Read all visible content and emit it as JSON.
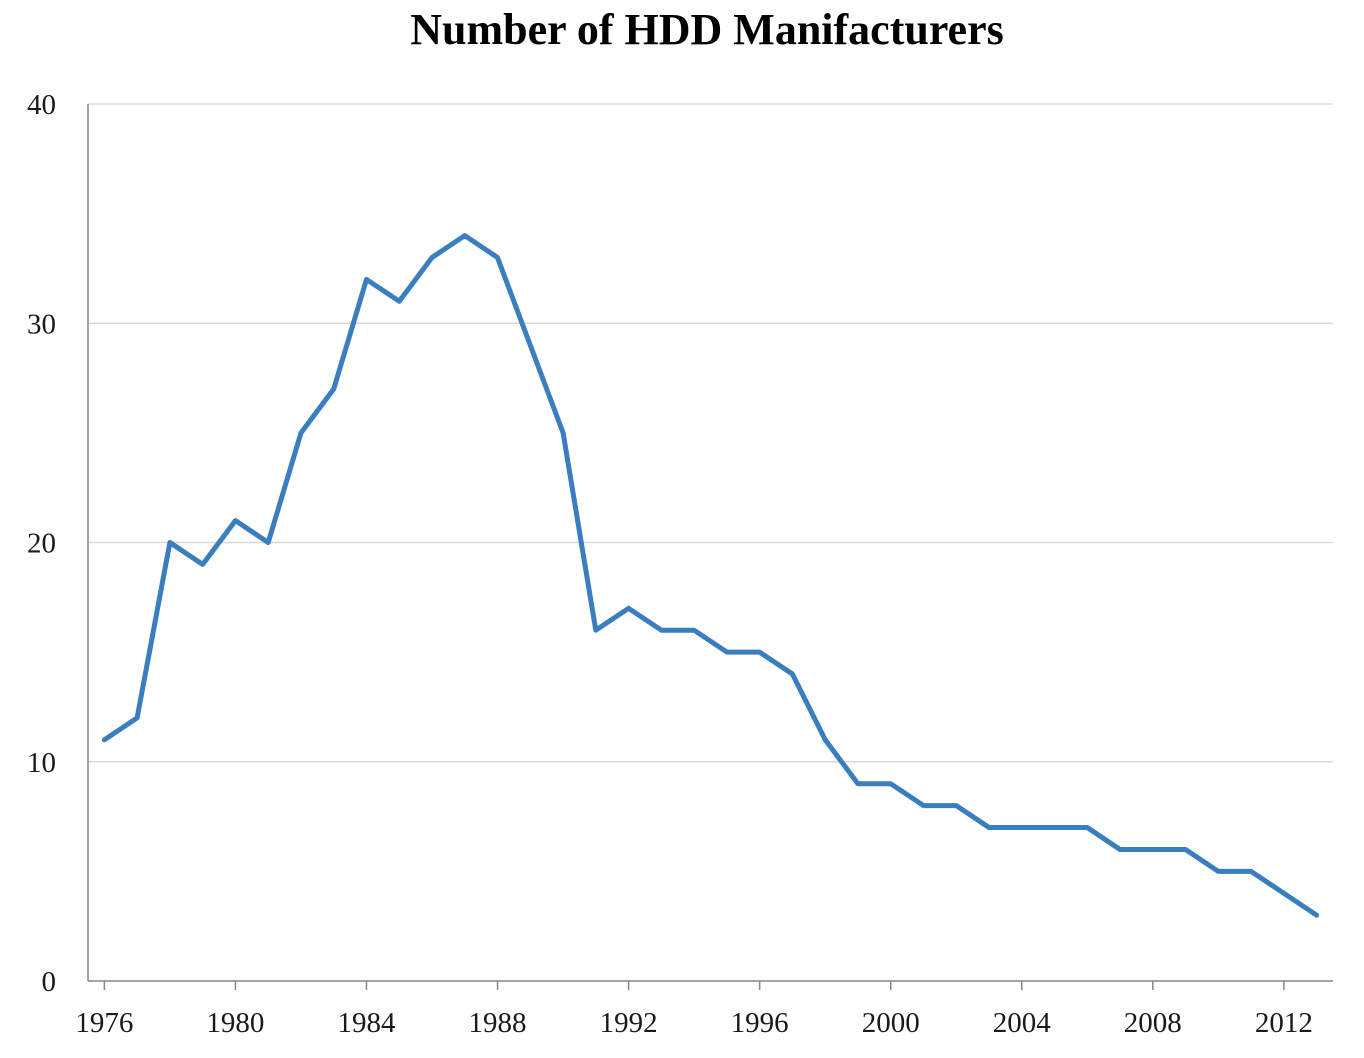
{
  "chart_data": {
    "type": "line",
    "title": "Number of HDD Manifacturers",
    "xlabel": "",
    "ylabel": "",
    "xlim": [
      1975.5,
      2013.5
    ],
    "ylim": [
      0,
      40
    ],
    "x_ticks": [
      1976,
      1980,
      1984,
      1988,
      1992,
      1996,
      2000,
      2004,
      2008,
      2012
    ],
    "x_tick_labels": [
      "1976",
      "1980",
      "1984",
      "1988",
      "1992",
      "1996",
      "2000",
      "2004",
      "2008",
      "2012"
    ],
    "y_ticks": [
      0,
      10,
      20,
      30,
      40
    ],
    "y_tick_labels": [
      "0",
      "10",
      "20",
      "30",
      "40"
    ],
    "grid": "horizontal",
    "legend": "none",
    "series": [
      {
        "color": "#3a7ebf",
        "x": [
          1976,
          1977,
          1978,
          1979,
          1980,
          1981,
          1982,
          1983,
          1984,
          1985,
          1986,
          1987,
          1988,
          1989,
          1990,
          1991,
          1992,
          1993,
          1994,
          1995,
          1996,
          1997,
          1998,
          1999,
          2000,
          2001,
          2002,
          2003,
          2004,
          2005,
          2006,
          2007,
          2008,
          2009,
          2010,
          2011,
          2012,
          2013
        ],
        "values": [
          11,
          12,
          20,
          19,
          21,
          20,
          25,
          27,
          32,
          31,
          33,
          34,
          33,
          29,
          25,
          16,
          17,
          16,
          16,
          15,
          15,
          14,
          11,
          9,
          9,
          8,
          8,
          7,
          7,
          7,
          7,
          6,
          6,
          6,
          5,
          5,
          4,
          3
        ]
      }
    ]
  },
  "colors": {
    "line": "#3a7ebf",
    "grid": "#d9d9d9",
    "axis": "#868686",
    "text": "#1a1a1a"
  }
}
